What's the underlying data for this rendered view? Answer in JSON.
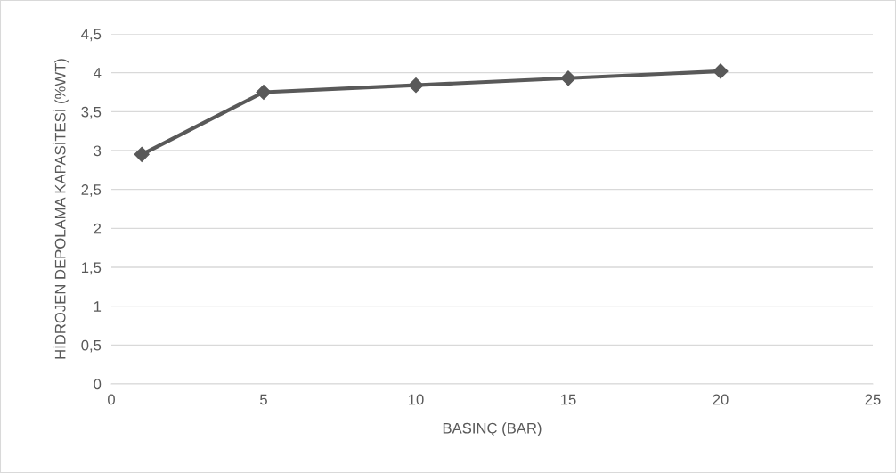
{
  "chart_data": {
    "type": "line",
    "xlabel": "BASINÇ (BAR)",
    "ylabel": "HİDROJEN DEPOLAMA KAPASİTESİ (%WT)",
    "x": [
      1,
      5,
      10,
      15,
      20
    ],
    "series": [
      {
        "color": "#595959",
        "values": [
          2.95,
          3.75,
          3.84,
          3.93,
          4.02
        ]
      }
    ],
    "xlim": [
      0,
      25
    ],
    "xticks": [
      0,
      5,
      10,
      15,
      20,
      25
    ],
    "ylim": [
      0,
      4.5
    ],
    "yticks": [
      0,
      {
        "value": 0.5,
        "label": "0,5"
      },
      1,
      {
        "value": 1.5,
        "label": "1,5"
      },
      2,
      {
        "value": 2.5,
        "label": "2,5"
      },
      3,
      {
        "value": 3.5,
        "label": "3,5"
      },
      4,
      {
        "value": 4.5,
        "label": "4,5"
      }
    ],
    "grid": "y",
    "marker": "diamond",
    "line_style": "solid"
  }
}
